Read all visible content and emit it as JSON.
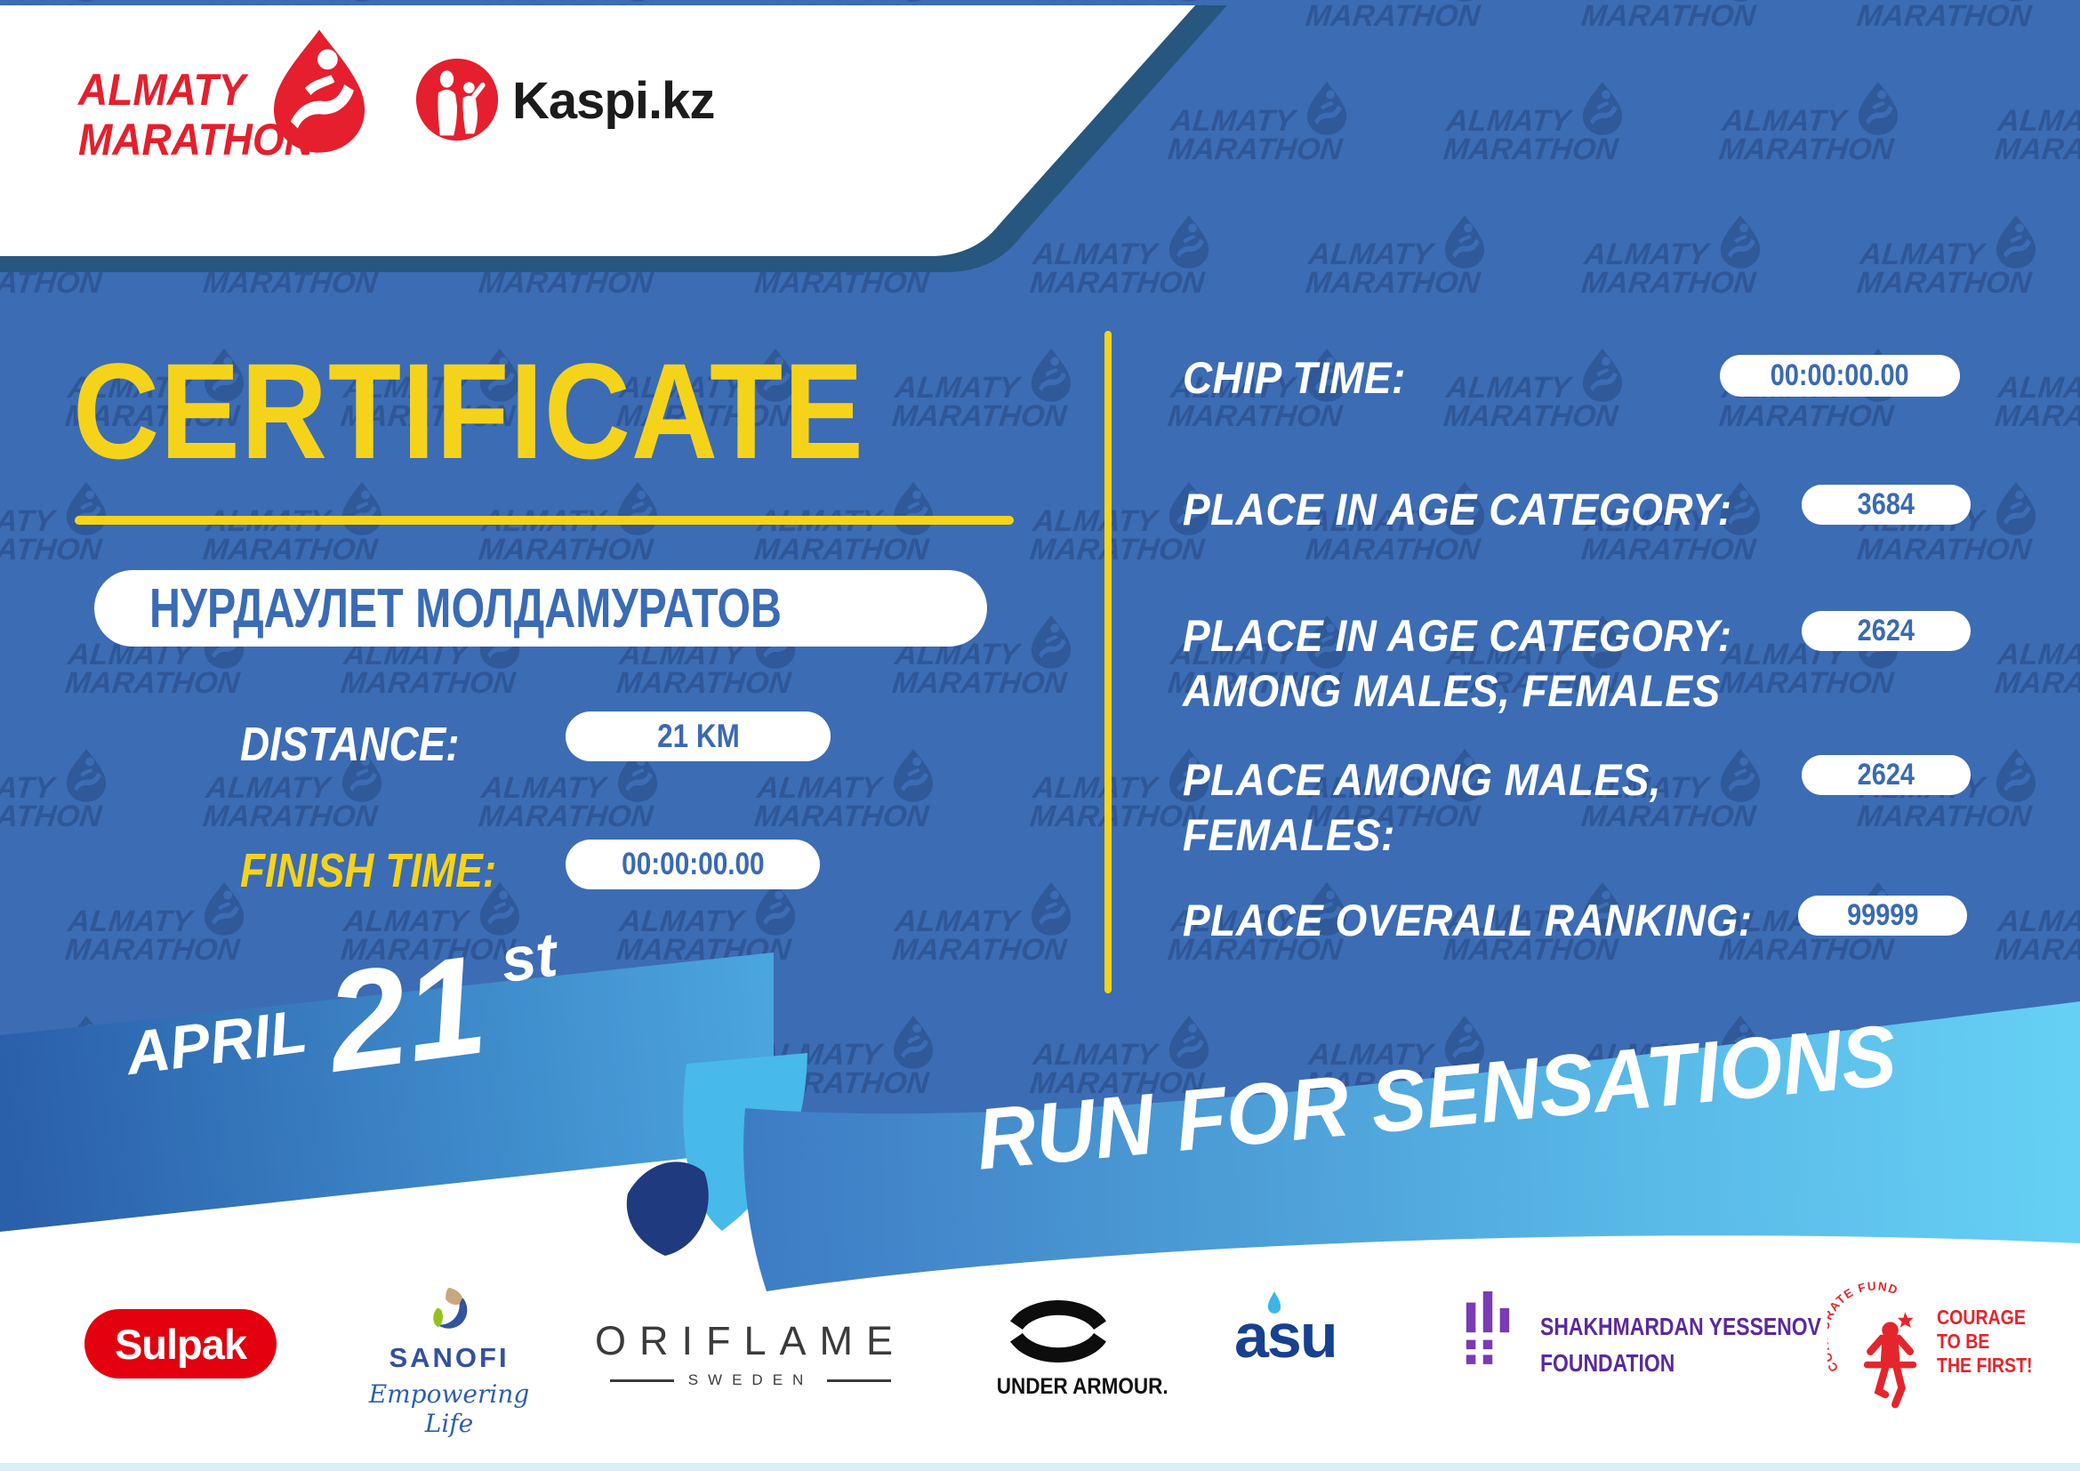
{
  "header": {
    "almaty_logo": {
      "line1": "ALMATY",
      "line2": "MARATHON"
    },
    "kaspi_label": "Kaspi.kz"
  },
  "watermark": {
    "line1": "ALMATY",
    "line2": "MARATHON"
  },
  "certificate": {
    "title": "CERTIFICATE",
    "name": "НУРДАУЛЕТ МОЛДАМУРАТОВ",
    "distance_label": "DISTANCE:",
    "distance_value": "21 KM",
    "finish_label": "FINISH TIME:",
    "finish_value": "00:00:00.00"
  },
  "results": {
    "rows": [
      {
        "label": "CHIP TIME:",
        "label2": "",
        "value": "00:00:00.00"
      },
      {
        "label": "PLACE IN AGE CATEGORY:",
        "label2": "",
        "value": "3684"
      },
      {
        "label": "PLACE IN AGE CATEGORY:",
        "label2": "AMONG MALES, FEMALES",
        "value": "2624"
      },
      {
        "label": "PLACE AMONG MALES,",
        "label2": "FEMALES:",
        "value": "2624"
      },
      {
        "label": "PLACE OVERALL RANKING:",
        "label2": "",
        "value": "99999"
      }
    ]
  },
  "banner": {
    "month": "APRIL",
    "day": "21",
    "suffix": "st",
    "slogan": "RUN FOR SENSATIONS"
  },
  "sponsors": {
    "sulpak": "Sulpak",
    "sanofi_name": "SANOFI",
    "sanofi_tagline": "Empowering Life",
    "oriflame_name": "ORIFLAME",
    "oriflame_sub": "SWEDEN",
    "underarmour": "UNDER ARMOUR.",
    "asu": "asu",
    "yessenov_line1": "SHAKHMARDAN YESSENOV",
    "yessenov_line2": "FOUNDATION",
    "courage_arc": "CORPORATE FUND",
    "courage_line1": "COURAGE",
    "courage_line2": "TO BE",
    "courage_line3": "THE FIRST!"
  },
  "colors": {
    "background_blue": "#3c6cb4",
    "accent_yellow": "#f6d31b",
    "panel_border": "#27567f",
    "brand_red": "#e51f2d",
    "text_blue": "#3a6cb5",
    "ribbon_light": "#66d0f4",
    "ribbon_dark": "#2a5fa9"
  }
}
